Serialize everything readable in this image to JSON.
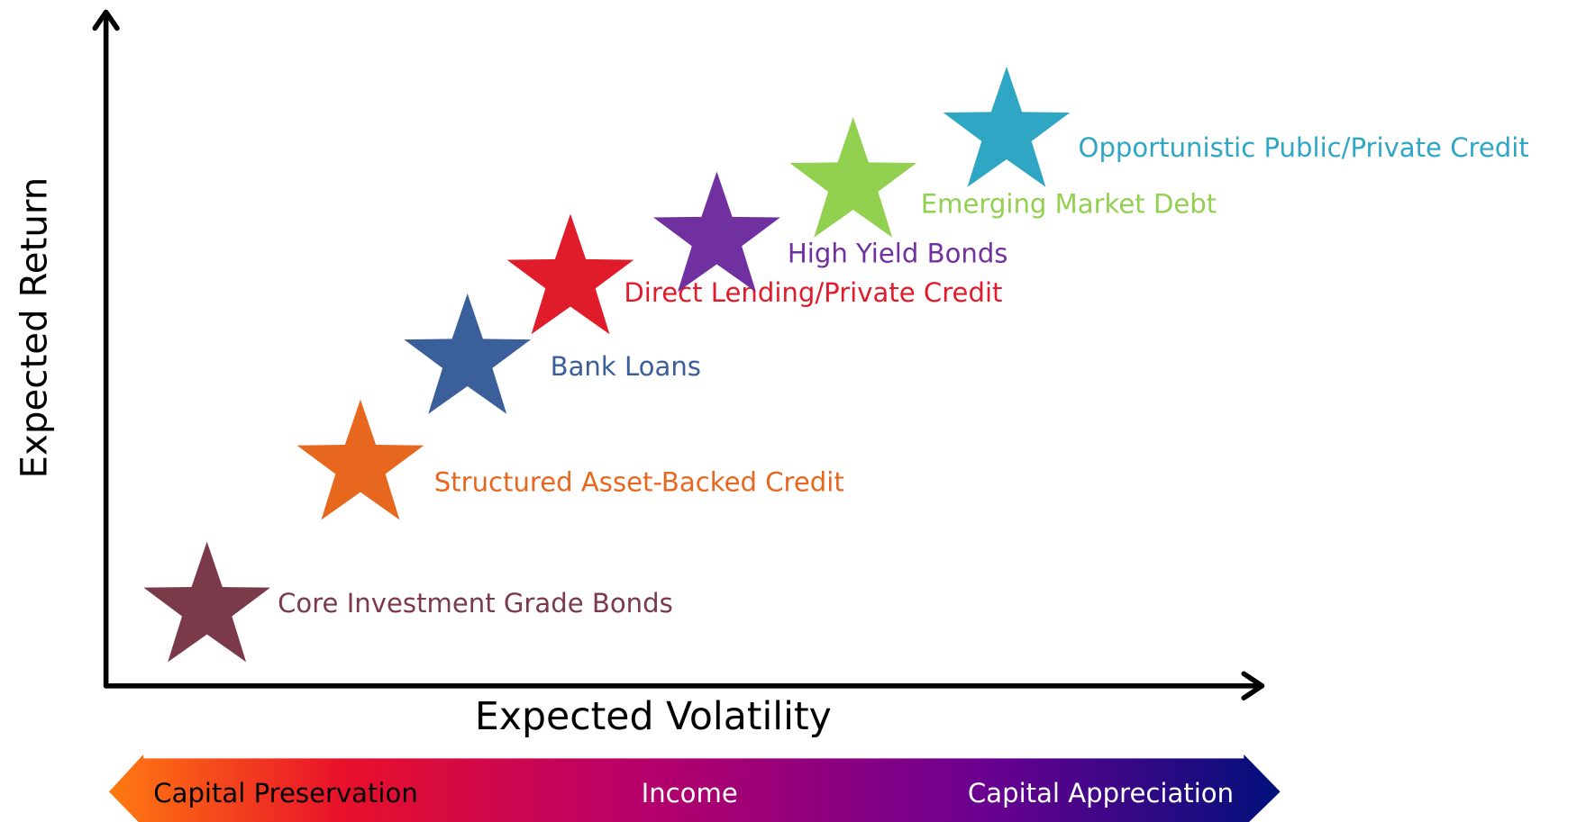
{
  "axes": {
    "y_label": "Expected Return",
    "x_label": "Expected Volatility"
  },
  "items": [
    {
      "label": "Core Investment Grade Bonds",
      "color": "#7b3a4a"
    },
    {
      "label": "Structured Asset-Backed Credit",
      "color": "#e8671e"
    },
    {
      "label": "Bank Loans",
      "color": "#3a5f9a"
    },
    {
      "label": "Direct Lending/Private Credit",
      "color": "#e01b2a"
    },
    {
      "label": "High Yield Bonds",
      "color": "#7030a0"
    },
    {
      "label": "Emerging Market Debt",
      "color": "#92d050"
    },
    {
      "label": "Opportunistic Public/Private Credit",
      "color": "#2ea6c4"
    }
  ],
  "spectrum": {
    "left": "Capital Preservation",
    "middle": "Income",
    "right": "Capital Appreciation"
  }
}
